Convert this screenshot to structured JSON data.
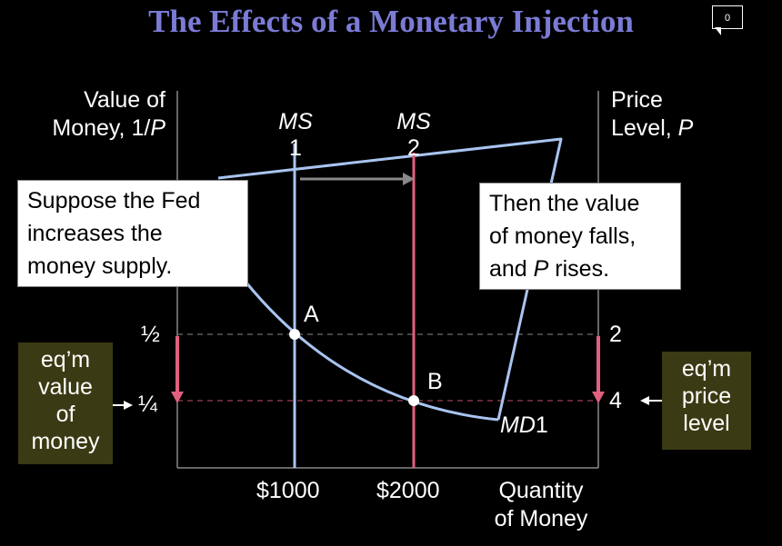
{
  "slide": {
    "title": "The Effects of a Monetary Injection",
    "comment_count": "0"
  },
  "labels": {
    "left_axis_line1": "Value of",
    "left_axis_line2_a": "Money, 1/",
    "left_axis_line2_b": "P",
    "right_axis_line1": "Price",
    "right_axis_line2_a": "Level, ",
    "right_axis_line2_b": "P",
    "x_axis_line1": "Quantity",
    "x_axis_line2": "of Money",
    "ms1_top": "MS",
    "ms1_num": "1",
    "ms2_top": "MS",
    "ms2_num": "2",
    "md": "MD",
    "md_num": "1",
    "point_a": "A",
    "point_b": "B",
    "left_tick_high": "½",
    "left_tick_low": "¼",
    "right_tick_high": "2",
    "right_tick_low": "4",
    "x_tick_1": "$1000",
    "x_tick_2": "$2000"
  },
  "callouts": {
    "fed_line1": "Suppose the Fed",
    "fed_line2": "increases the",
    "fed_line3": "money supply.",
    "value_line1": "Then the value",
    "value_line2": "of money falls,",
    "value_line3_a": "and ",
    "value_line3_b": "P",
    "value_line3_c": " rises.",
    "eq_value_line1": "eq’m",
    "eq_value_line2": "value",
    "eq_value_line3": "of",
    "eq_value_line4": "money",
    "eq_price_line1": "eq’m",
    "eq_price_line2": "price",
    "eq_price_line3": "level"
  },
  "colors": {
    "ms1": "#a9c4f0",
    "ms2": "#e0607e",
    "md": "#a9c4f0",
    "arrow": "#888888",
    "olive": "#3a3a14"
  },
  "chart_data": {
    "type": "line",
    "title": "The Effects of a Monetary Injection",
    "xlabel": "Quantity of Money",
    "ylabel_left": "Value of Money, 1/P",
    "ylabel_right": "Price Level, P",
    "left_axis_ticks": [
      "½",
      "¼"
    ],
    "right_axis_ticks": [
      "2",
      "4"
    ],
    "x_ticks": [
      "$1000",
      "$2000"
    ],
    "series": [
      {
        "name": "MS1",
        "type": "vertical",
        "x": 1000
      },
      {
        "name": "MS2",
        "type": "vertical",
        "x": 2000
      },
      {
        "name": "MD1",
        "type": "curve"
      }
    ],
    "points": [
      {
        "label": "A",
        "x": 1000,
        "value_of_money": 0.5,
        "price_level": 2
      },
      {
        "label": "B",
        "x": 2000,
        "value_of_money": 0.25,
        "price_level": 4
      }
    ]
  }
}
